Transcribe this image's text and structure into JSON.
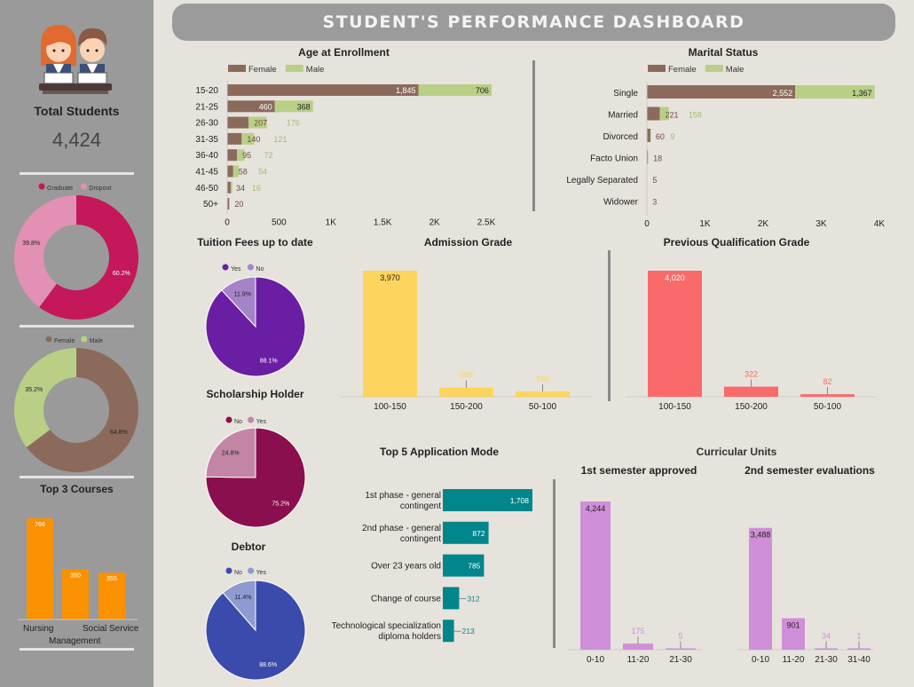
{
  "header": {
    "title": "STUDENT'S PERFORMANCE DASHBOARD"
  },
  "sidebar": {
    "total_label": "Total Students",
    "total_value": "4,424",
    "top_courses_title": "Top 3 Courses"
  },
  "colors": {
    "female": "#8b6a5c",
    "male": "#b9cf85",
    "graduate": "#c4185b",
    "dropout": "#e290b4",
    "tuition_yes": "#6a1ea4",
    "tuition_no": "#a583c7",
    "scholar_no": "#8b0e4e",
    "scholar_yes": "#c286a4",
    "debtor_no": "#3b4bab",
    "debtor_yes": "#8e9ad0",
    "admission": "#fdd45d",
    "prevqual": "#fa6a6a",
    "appmode": "#00868b",
    "curricular": "#cf8ed8",
    "courses": "#f99100"
  },
  "chart_data": [
    {
      "id": "graduate_dropout",
      "type": "pie",
      "legend": [
        "Graduate",
        "Dropout"
      ],
      "values": [
        60.2,
        39.8
      ],
      "labels": [
        "60.2%",
        "39.8%"
      ]
    },
    {
      "id": "gender",
      "type": "pie",
      "legend": [
        "Female",
        "Male"
      ],
      "values": [
        64.8,
        35.2
      ],
      "labels": [
        "64.8%",
        "35.2%"
      ]
    },
    {
      "id": "top_courses",
      "type": "bar",
      "categories": [
        "Nursing",
        "Management",
        "Social Service"
      ],
      "values": [
        766,
        380,
        355
      ]
    },
    {
      "id": "age",
      "type": "bar",
      "title": "Age at Enrollment",
      "legend": [
        "Female",
        "Male"
      ],
      "categories": [
        "15-20",
        "21-25",
        "26-30",
        "31-35",
        "36-40",
        "41-45",
        "46-50",
        "50+"
      ],
      "series": [
        {
          "name": "Female",
          "values": [
            1845,
            460,
            207,
            140,
            95,
            58,
            34,
            20
          ]
        },
        {
          "name": "Male",
          "values": [
            706,
            368,
            176,
            121,
            72,
            54,
            16,
            0
          ]
        }
      ],
      "value_labels": {
        "Female": [
          "1,845",
          "460",
          "207",
          "140",
          "95",
          "58",
          "34",
          "20"
        ],
        "Male": [
          "706",
          "368",
          "176",
          "121",
          "72",
          "54",
          "16",
          "0"
        ]
      },
      "xticks": [
        "0",
        "500",
        "1K",
        "1.5K",
        "2K",
        "2.5K"
      ],
      "xlim": [
        0,
        2500
      ]
    },
    {
      "id": "marital",
      "type": "bar",
      "title": "Marital Status",
      "legend": [
        "Female",
        "Male"
      ],
      "categories": [
        "Single",
        "Married",
        "Divorced",
        "Facto Union",
        "Legally Separated",
        "Widower"
      ],
      "series": [
        {
          "name": "Female",
          "values": [
            2552,
            221,
            60,
            18,
            5,
            3
          ]
        },
        {
          "name": "Male",
          "values": [
            1367,
            158,
            9,
            0,
            0,
            0
          ]
        }
      ],
      "value_labels": {
        "Female": [
          "2,552",
          "221",
          "60",
          "18",
          "5",
          "3"
        ],
        "Male": [
          "1,367",
          "158",
          "9",
          "",
          "",
          ""
        ]
      },
      "xticks": [
        "0",
        "1K",
        "2K",
        "3K",
        "4K"
      ],
      "xlim": [
        0,
        4000
      ]
    },
    {
      "id": "tuition",
      "type": "pie",
      "title": "Tuition Fees up to date",
      "legend": [
        "Yes",
        "No"
      ],
      "values": [
        88.1,
        11.9
      ],
      "labels": [
        "88.1%",
        "11.9%"
      ]
    },
    {
      "id": "scholarship",
      "type": "pie",
      "title": "Scholarship Holder",
      "legend": [
        "No",
        "Yes"
      ],
      "values": [
        75.2,
        24.8
      ],
      "labels": [
        "75.2%",
        "24.8%"
      ]
    },
    {
      "id": "debtor",
      "type": "pie",
      "title": "Debtor",
      "legend": [
        "No",
        "Yes"
      ],
      "values": [
        88.6,
        11.4
      ],
      "labels": [
        "88.6%",
        "11.4%"
      ]
    },
    {
      "id": "admission",
      "type": "bar",
      "title": "Admission Grade",
      "categories": [
        "100-150",
        "150-200",
        "50-100"
      ],
      "values": [
        3970,
        288,
        166
      ],
      "labels": [
        "3,970",
        "288",
        "166"
      ],
      "ylim": [
        0,
        4000
      ]
    },
    {
      "id": "prevqual",
      "type": "bar",
      "title": "Previous Qualification Grade",
      "categories": [
        "100-150",
        "150-200",
        "50-100"
      ],
      "values": [
        4020,
        322,
        82
      ],
      "labels": [
        "4,020",
        "322",
        "82"
      ],
      "ylim": [
        0,
        4000
      ]
    },
    {
      "id": "appmode",
      "type": "bar",
      "title": "Top 5 Application Mode",
      "categories": [
        "1st phase - general contingent",
        "2nd phase - general contingent",
        "Over 23 years old",
        "Change of course",
        "Technological specialization diploma holders"
      ],
      "category_lines": [
        [
          "1st phase - general",
          "contingent"
        ],
        [
          "2nd phase - general",
          "contingent"
        ],
        [
          "Over 23 years old"
        ],
        [
          "Change of course"
        ],
        [
          "Technological specialization",
          "diploma holders"
        ]
      ],
      "values": [
        1708,
        872,
        785,
        312,
        213
      ],
      "labels": [
        "1,708",
        "872",
        "785",
        "312",
        "213"
      ]
    },
    {
      "id": "sem1",
      "type": "bar",
      "title": "1st semester approved",
      "categories": [
        "0-10",
        "11-20",
        "21-30"
      ],
      "values": [
        4244,
        175,
        5
      ],
      "labels": [
        "4,244",
        "175",
        "5"
      ]
    },
    {
      "id": "sem2",
      "type": "bar",
      "title": "2nd semester evaluations",
      "categories": [
        "0-10",
        "11-20",
        "21-30",
        "31-40"
      ],
      "values": [
        3488,
        901,
        34,
        1
      ],
      "labels": [
        "3,488",
        "901",
        "34",
        "1"
      ]
    }
  ],
  "curricular_title": "Curricular Units"
}
